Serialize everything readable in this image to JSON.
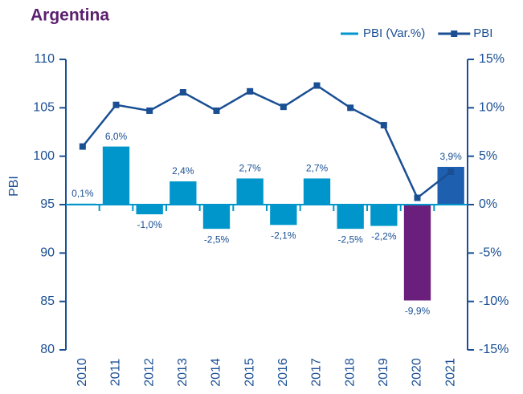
{
  "chart_data": {
    "type": "bar-line",
    "title": "Argentina",
    "categories": [
      "2010",
      "2011",
      "2012",
      "2013",
      "2014",
      "2015",
      "2016",
      "2017",
      "2018",
      "2019",
      "2020",
      "2021"
    ],
    "ylabel": "PBI",
    "ylim": [
      80,
      110
    ],
    "yticks": [
      80,
      85,
      90,
      95,
      100,
      105,
      110
    ],
    "y2lim": [
      -15,
      15
    ],
    "y2ticks": [
      {
        "value": -15,
        "label": "-15%"
      },
      {
        "value": -10,
        "label": "-10%"
      },
      {
        "value": -5,
        "label": "-5%"
      },
      {
        "value": 0,
        "label": "0%"
      },
      {
        "value": 5,
        "label": "5%"
      },
      {
        "value": 10,
        "label": "10%"
      },
      {
        "value": 15,
        "label": "15%"
      }
    ],
    "series": [
      {
        "name": "PBI (Var.%)",
        "kind": "bar",
        "axis": "y2",
        "color": "#0096cc",
        "colors": [
          "#0096cc",
          "#0096cc",
          "#0096cc",
          "#0096cc",
          "#0096cc",
          "#0096cc",
          "#0096cc",
          "#0096cc",
          "#0096cc",
          "#0096cc",
          "#6b1f7c",
          "#1f5fb0"
        ],
        "values": [
          0.1,
          6.0,
          -1.0,
          2.4,
          -2.5,
          2.7,
          -2.1,
          2.7,
          -2.5,
          -2.2,
          -9.9,
          3.9
        ],
        "value_labels": [
          "0,1%",
          "6,0%",
          "-1,0%",
          "2,4%",
          "-2,5%",
          "2,7%",
          "-2,1%",
          "2,7%",
          "-2,5%",
          "-2,2%",
          "-9,9%",
          "3,9%"
        ]
      },
      {
        "name": "PBI",
        "kind": "line",
        "color": "#1a4f94",
        "values": [
          101.0,
          105.3,
          104.7,
          106.6,
          104.7,
          106.7,
          105.1,
          107.3,
          105.0,
          103.2,
          95.7,
          98.4
        ]
      }
    ]
  }
}
